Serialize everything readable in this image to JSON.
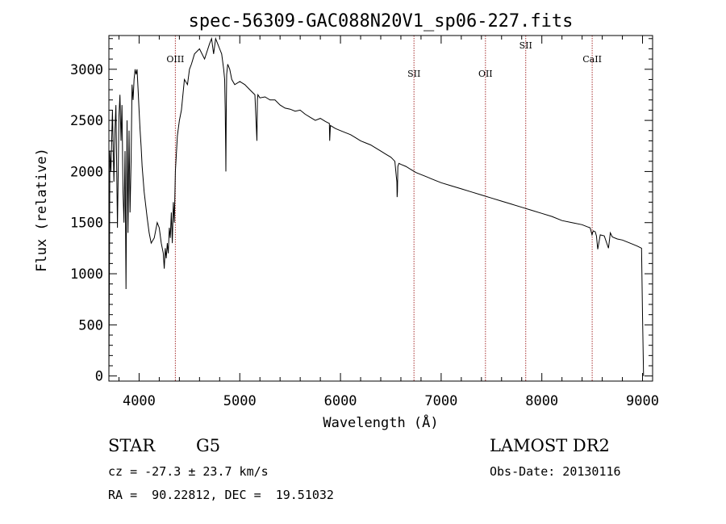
{
  "chart_data": {
    "type": "line",
    "title": "spec-56309-GAC088N20V1_sp06-227.fits",
    "xlabel": "Wavelength (Å)",
    "ylabel": "Flux (relative)",
    "xlim": [
      3700,
      9100
    ],
    "ylim": [
      -50,
      3330
    ],
    "xticks": [
      4000,
      5000,
      6000,
      7000,
      8000,
      9000
    ],
    "yticks": [
      0,
      500,
      1000,
      1500,
      2000,
      2500,
      3000
    ],
    "grid": false,
    "series": [
      {
        "color": "#000000",
        "x": [
          3700,
          3705,
          3710,
          3720,
          3735,
          3750,
          3760,
          3770,
          3785,
          3800,
          3810,
          3820,
          3830,
          3840,
          3850,
          3860,
          3870,
          3880,
          3890,
          3900,
          3910,
          3920,
          3930,
          3940,
          3950,
          3960,
          3970,
          3980,
          3990,
          4000,
          4010,
          4020,
          4030,
          4050,
          4080,
          4100,
          4120,
          4150,
          4180,
          4200,
          4220,
          4240,
          4250,
          4260,
          4270,
          4280,
          4290,
          4300,
          4310,
          4320,
          4330,
          4340,
          4350,
          4360,
          4380,
          4400,
          4420,
          4450,
          4480,
          4500,
          4520,
          4550,
          4600,
          4650,
          4700,
          4720,
          4740,
          4760,
          4780,
          4800,
          4820,
          4840,
          4850,
          4855,
          4860,
          4862,
          4866,
          4870,
          4880,
          4900,
          4920,
          4950,
          5000,
          5050,
          5100,
          5150,
          5170,
          5175,
          5180,
          5200,
          5250,
          5300,
          5350,
          5400,
          5450,
          5500,
          5550,
          5600,
          5650,
          5700,
          5750,
          5800,
          5850,
          5890,
          5893,
          5900,
          5950,
          6000,
          6050,
          6100,
          6150,
          6200,
          6250,
          6300,
          6350,
          6400,
          6450,
          6500,
          6520,
          6540,
          6555,
          6560,
          6563,
          6566,
          6570,
          6580,
          6600,
          6650,
          6700,
          6750,
          6800,
          6850,
          6900,
          6950,
          7000,
          7100,
          7200,
          7300,
          7400,
          7500,
          7600,
          7700,
          7800,
          7900,
          8000,
          8100,
          8200,
          8300,
          8400,
          8450,
          8480,
          8498,
          8510,
          8530,
          8542,
          8555,
          8580,
          8620,
          8662,
          8680,
          8700,
          8750,
          8800,
          8850,
          8900,
          8950,
          8990,
          9000,
          9010
        ],
        "y": [
          0,
          1000,
          2200,
          2000,
          2600,
          1900,
          2400,
          2650,
          1450,
          2550,
          2750,
          2300,
          2650,
          1800,
          1500,
          2200,
          850,
          2500,
          1400,
          2400,
          1600,
          2100,
          2850,
          2700,
          2900,
          3000,
          2950,
          3000,
          2800,
          2600,
          2400,
          2250,
          2050,
          1800,
          1550,
          1400,
          1300,
          1350,
          1500,
          1450,
          1300,
          1200,
          1050,
          1250,
          1150,
          1300,
          1200,
          1450,
          1350,
          1600,
          1300,
          1700,
          1500,
          2000,
          2350,
          2500,
          2600,
          2900,
          2850,
          3000,
          3050,
          3150,
          3200,
          3100,
          3250,
          3300,
          3150,
          3300,
          3250,
          3200,
          3150,
          3000,
          2900,
          2600,
          2200,
          2000,
          2600,
          2950,
          3050,
          3000,
          2900,
          2850,
          2880,
          2850,
          2800,
          2750,
          2300,
          2700,
          2750,
          2720,
          2730,
          2700,
          2700,
          2650,
          2620,
          2610,
          2590,
          2600,
          2560,
          2530,
          2500,
          2520,
          2490,
          2470,
          2300,
          2450,
          2420,
          2400,
          2380,
          2360,
          2330,
          2300,
          2280,
          2260,
          2230,
          2200,
          2170,
          2140,
          2120,
          2100,
          1950,
          1900,
          1750,
          1800,
          2050,
          2080,
          2070,
          2050,
          2020,
          1990,
          1970,
          1950,
          1930,
          1910,
          1890,
          1860,
          1830,
          1800,
          1770,
          1740,
          1710,
          1680,
          1650,
          1620,
          1590,
          1560,
          1520,
          1500,
          1480,
          1460,
          1450,
          1380,
          1420,
          1410,
          1370,
          1240,
          1380,
          1370,
          1250,
          1400,
          1360,
          1340,
          1330,
          1310,
          1290,
          1270,
          1250,
          600,
          0
        ]
      }
    ],
    "lines": [
      {
        "label": "OIII",
        "wavelength": 4360
      },
      {
        "label": "SII",
        "wavelength": 6730
      },
      {
        "label": "OII",
        "wavelength": 7440
      },
      {
        "label": "SII",
        "wavelength": 7840
      },
      {
        "label": "CaII",
        "wavelength": 8500
      }
    ],
    "line_color": "#a83232"
  },
  "info": {
    "classification": "STAR",
    "subclass": "G5",
    "survey": "LAMOST DR2",
    "cz": "cz = -27.3 ± 23.7 km/s",
    "obs_date": "Obs-Date: 20130116",
    "radec": "RA =  90.22812, DEC =  19.51032"
  }
}
